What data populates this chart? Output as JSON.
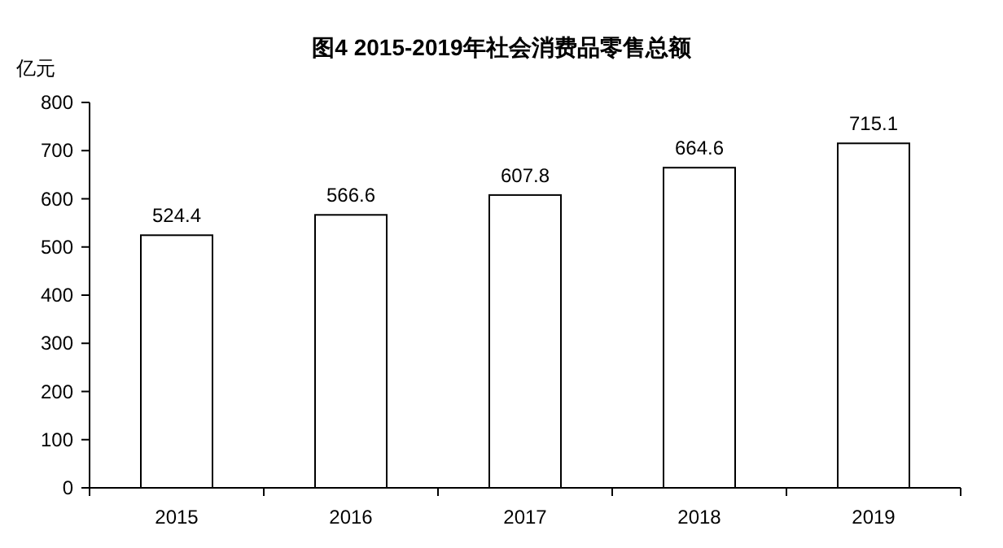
{
  "chart_data": {
    "type": "bar",
    "title": "图4 2015-2019年社会消费品零售总额",
    "ylabel": "亿元",
    "categories": [
      "2015",
      "2016",
      "2017",
      "2018",
      "2019"
    ],
    "values": [
      524.4,
      566.6,
      607.8,
      664.6,
      715.1
    ],
    "color": "#ffffff",
    "ylim": [
      0,
      800
    ],
    "yticks": [
      0,
      100,
      200,
      300,
      400,
      500,
      600,
      700,
      800
    ],
    "data_labels": true
  }
}
